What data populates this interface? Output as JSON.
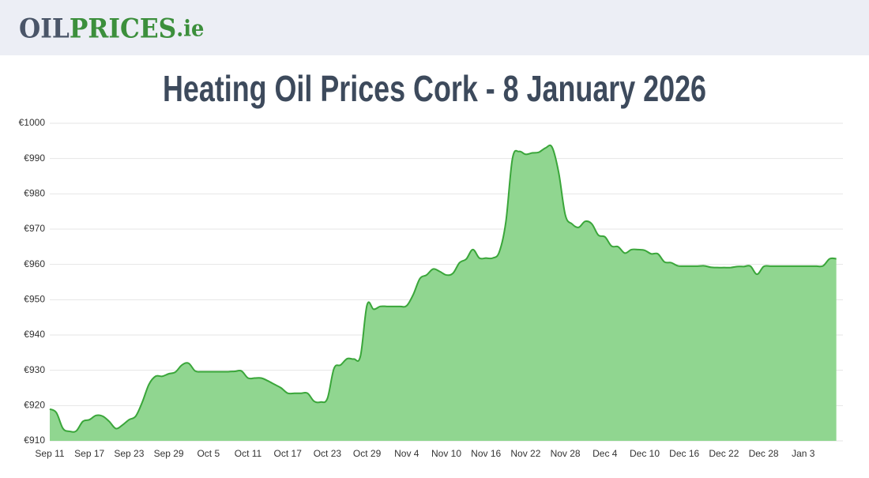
{
  "header": {
    "logo": [
      "OIL",
      "PRICES",
      ".ie"
    ]
  },
  "chart_data": {
    "type": "area",
    "title": "Heating Oil Prices Cork - 8 January 2026",
    "categories": [
      "Sep 11",
      null,
      null,
      null,
      null,
      null,
      "Sep 17",
      null,
      null,
      null,
      null,
      null,
      "Sep 23",
      null,
      null,
      null,
      null,
      null,
      "Sep 29",
      null,
      null,
      null,
      null,
      null,
      "Oct 5",
      null,
      null,
      null,
      null,
      null,
      "Oct 11",
      null,
      null,
      null,
      null,
      null,
      "Oct 17",
      null,
      null,
      null,
      null,
      null,
      "Oct 23",
      null,
      null,
      null,
      null,
      null,
      "Oct 29",
      null,
      null,
      null,
      null,
      null,
      "Nov 4",
      null,
      null,
      null,
      null,
      null,
      "Nov 10",
      null,
      null,
      null,
      null,
      null,
      "Nov 16",
      null,
      null,
      null,
      null,
      null,
      "Nov 22",
      null,
      null,
      null,
      null,
      null,
      "Nov 28",
      null,
      null,
      null,
      null,
      null,
      "Dec 4",
      null,
      null,
      null,
      null,
      null,
      "Dec 10",
      null,
      null,
      null,
      null,
      null,
      "Dec 16",
      null,
      null,
      null,
      null,
      null,
      "Dec 22",
      null,
      null,
      null,
      null,
      null,
      "Dec 28",
      null,
      null,
      null,
      null,
      null,
      "Jan 3",
      null,
      null,
      null,
      null,
      null
    ],
    "series": [
      {
        "color": "#3aa63a",
        "fill": "#90d690",
        "values": [
          919,
          918,
          913.5,
          912.7,
          912.8,
          915.5,
          916,
          917.2,
          917,
          915.5,
          913.5,
          914.5,
          916,
          917,
          921,
          926,
          928.3,
          928.3,
          929,
          929.5,
          931.5,
          932,
          929.8,
          929.6,
          929.6,
          929.6,
          929.6,
          929.6,
          929.7,
          929.8,
          927.8,
          927.8,
          927.8,
          927,
          926,
          925,
          923.5,
          923.5,
          923.5,
          923.5,
          921.2,
          921,
          922,
          930.5,
          931.5,
          933.3,
          933.2,
          934,
          948.5,
          947.3,
          948.1,
          948.1,
          948.1,
          948.1,
          948.3,
          951.5,
          956,
          957,
          958.7,
          958,
          957,
          957.5,
          960.5,
          961.5,
          964.2,
          961.8,
          961.8,
          961.8,
          963.5,
          972,
          990,
          992,
          991.2,
          991.6,
          991.8,
          993,
          993.2,
          986,
          974,
          971.5,
          970.5,
          972.2,
          971.5,
          968.3,
          967.8,
          965.2,
          965,
          963.2,
          964.2,
          964.2,
          964,
          963,
          963,
          960.7,
          960.5,
          959.6,
          959.5,
          959.5,
          959.5,
          959.6,
          959.2,
          959.1,
          959.1,
          959.1,
          959.4,
          959.4,
          959.5,
          957.2,
          959.4,
          959.5,
          959.5,
          959.5,
          959.5,
          959.5,
          959.5,
          959.5,
          959.5,
          959.6,
          961.6,
          961.6
        ]
      }
    ],
    "ylim": [
      910,
      1000
    ],
    "yticks": [
      {
        "value": 910,
        "label": "€910"
      },
      {
        "value": 920,
        "label": "€920"
      },
      {
        "value": 930,
        "label": "€930"
      },
      {
        "value": 940,
        "label": "€940"
      },
      {
        "value": 950,
        "label": "€950"
      },
      {
        "value": 960,
        "label": "€960"
      },
      {
        "value": 970,
        "label": "€970"
      },
      {
        "value": 980,
        "label": "€980"
      },
      {
        "value": 990,
        "label": "€990"
      },
      {
        "value": 1000,
        "label": "€1000"
      }
    ],
    "grid": true
  }
}
